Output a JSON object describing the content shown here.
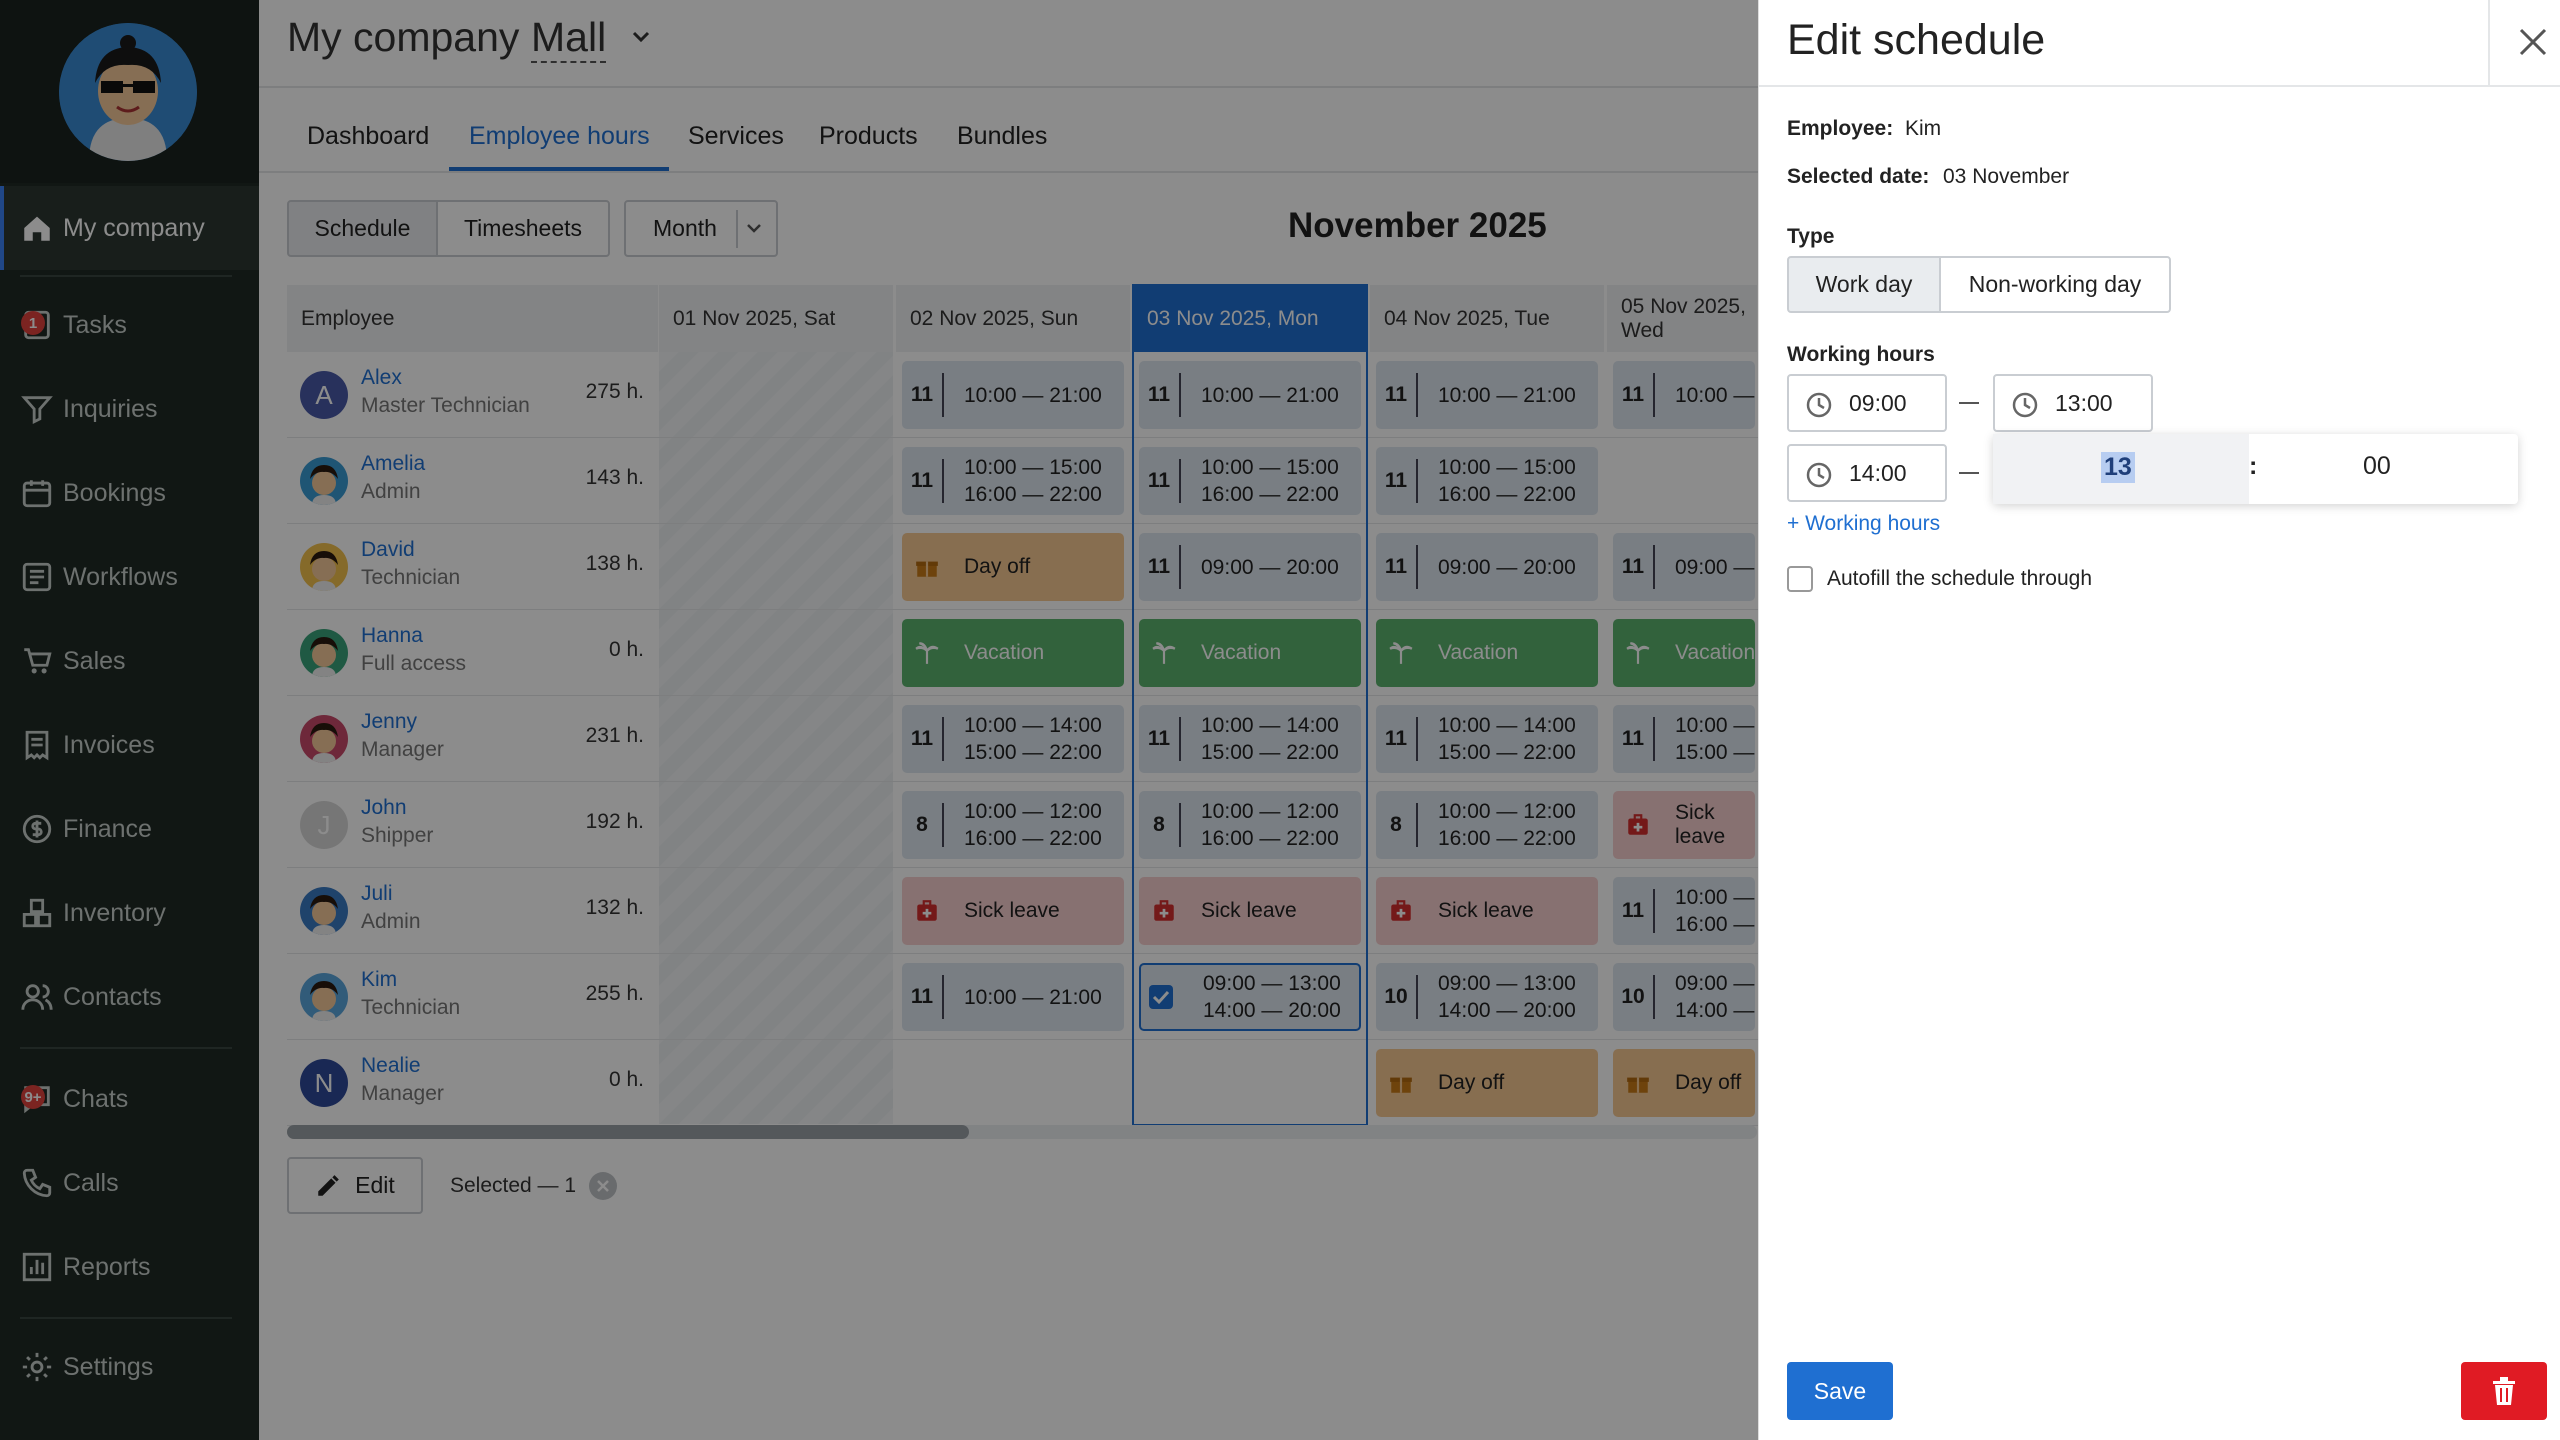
{
  "sidebar": {
    "items": [
      {
        "label": "My company",
        "icon": "home-icon"
      },
      {
        "label": "Tasks",
        "icon": "tasks-icon",
        "badge": "1"
      },
      {
        "label": "Inquiries",
        "icon": "funnel-icon"
      },
      {
        "label": "Bookings",
        "icon": "calendar-icon"
      },
      {
        "label": "Workflows",
        "icon": "workflow-icon"
      },
      {
        "label": "Sales",
        "icon": "cart-icon"
      },
      {
        "label": "Invoices",
        "icon": "invoice-icon"
      },
      {
        "label": "Finance",
        "icon": "dollar-icon"
      },
      {
        "label": "Inventory",
        "icon": "boxes-icon"
      },
      {
        "label": "Contacts",
        "icon": "contacts-icon"
      },
      {
        "label": "Chats",
        "icon": "chat-icon",
        "badge": "9+"
      },
      {
        "label": "Calls",
        "icon": "phone-icon"
      },
      {
        "label": "Reports",
        "icon": "reports-icon"
      },
      {
        "label": "Settings",
        "icon": "gear-icon"
      }
    ]
  },
  "header": {
    "company": "My company",
    "location": "Mall"
  },
  "tabs": [
    "Dashboard",
    "Employee hours",
    "Services",
    "Products",
    "Bundles"
  ],
  "toolbar": {
    "schedule": "Schedule",
    "timesheets": "Timesheets",
    "period": "Month",
    "month_title": "November 2025"
  },
  "grid": {
    "employee_header": "Employee",
    "columns": [
      "01 Nov 2025, Sat",
      "02 Nov 2025, Sun",
      "03 Nov 2025, Mon",
      "04 Nov 2025, Tue",
      "05 Nov 2025, Wed"
    ],
    "employees": [
      {
        "name": "Alex",
        "role": "Master Technician",
        "hours": "275 h.",
        "initial": "A"
      },
      {
        "name": "Amelia",
        "role": "Admin",
        "hours": "143 h."
      },
      {
        "name": "David",
        "role": "Technician",
        "hours": "138 h."
      },
      {
        "name": "Hanna",
        "role": "Full access",
        "hours": "0 h."
      },
      {
        "name": "Jenny",
        "role": "Manager",
        "hours": "231 h."
      },
      {
        "name": "John",
        "role": "Shipper",
        "hours": "192 h.",
        "initial": "J"
      },
      {
        "name": "Juli",
        "role": "Admin",
        "hours": "132 h."
      },
      {
        "name": "Kim",
        "role": "Technician",
        "hours": "255 h."
      },
      {
        "name": "Nealie",
        "role": "Manager",
        "hours": "0 h.",
        "initial": "N"
      }
    ],
    "rows": [
      [
        {
          "type": "work",
          "n": "11",
          "t": [
            "10:00 — 21:00"
          ]
        },
        {
          "type": "work",
          "n": "11",
          "t": [
            "10:00 — 21:00"
          ]
        },
        {
          "type": "work",
          "n": "11",
          "t": [
            "10:00 — 21:00"
          ]
        },
        {
          "type": "work",
          "n": "11",
          "t": [
            "10:00 —"
          ]
        }
      ],
      [
        {
          "type": "work",
          "n": "11",
          "t": [
            "10:00 — 15:00",
            "16:00 — 22:00"
          ]
        },
        {
          "type": "work",
          "n": "11",
          "t": [
            "10:00 — 15:00",
            "16:00 — 22:00"
          ]
        },
        {
          "type": "work",
          "n": "11",
          "t": [
            "10:00 — 15:00",
            "16:00 — 22:00"
          ]
        },
        null
      ],
      [
        {
          "type": "off",
          "label": "Day off"
        },
        {
          "type": "work",
          "n": "11",
          "t": [
            "09:00 — 20:00"
          ]
        },
        {
          "type": "work",
          "n": "11",
          "t": [
            "09:00 — 20:00"
          ]
        },
        {
          "type": "work",
          "n": "11",
          "t": [
            "09:00 —"
          ]
        }
      ],
      [
        {
          "type": "vac",
          "label": "Vacation"
        },
        {
          "type": "vac",
          "label": "Vacation"
        },
        {
          "type": "vac",
          "label": "Vacation"
        },
        {
          "type": "vac",
          "label": "Vacation"
        }
      ],
      [
        {
          "type": "work",
          "n": "11",
          "t": [
            "10:00 — 14:00",
            "15:00 — 22:00"
          ]
        },
        {
          "type": "work",
          "n": "11",
          "t": [
            "10:00 — 14:00",
            "15:00 — 22:00"
          ]
        },
        {
          "type": "work",
          "n": "11",
          "t": [
            "10:00 — 14:00",
            "15:00 — 22:00"
          ]
        },
        {
          "type": "work",
          "n": "11",
          "t": [
            "10:00 —",
            "15:00 —"
          ]
        }
      ],
      [
        {
          "type": "work",
          "n": "8",
          "t": [
            "10:00 — 12:00",
            "16:00 — 22:00"
          ]
        },
        {
          "type": "work",
          "n": "8",
          "t": [
            "10:00 — 12:00",
            "16:00 — 22:00"
          ]
        },
        {
          "type": "work",
          "n": "8",
          "t": [
            "10:00 — 12:00",
            "16:00 — 22:00"
          ]
        },
        {
          "type": "sick",
          "label": "Sick leave"
        }
      ],
      [
        {
          "type": "sick",
          "label": "Sick leave"
        },
        {
          "type": "sick",
          "label": "Sick leave"
        },
        {
          "type": "sick",
          "label": "Sick leave"
        },
        {
          "type": "work",
          "n": "11",
          "t": [
            "10:00 —",
            "16:00 —"
          ]
        }
      ],
      [
        {
          "type": "work",
          "n": "11",
          "t": [
            "10:00 — 21:00"
          ]
        },
        {
          "type": "work",
          "check": true,
          "t": [
            "09:00 — 13:00",
            "14:00 — 20:00"
          ]
        },
        {
          "type": "work",
          "n": "10",
          "t": [
            "09:00 — 13:00",
            "14:00 — 20:00"
          ]
        },
        {
          "type": "work",
          "n": "10",
          "t": [
            "09:00 —",
            "14:00 —"
          ]
        }
      ],
      [
        null,
        null,
        {
          "type": "off",
          "label": "Day off"
        },
        {
          "type": "off",
          "label": "Day off"
        }
      ]
    ]
  },
  "footer": {
    "edit": "Edit",
    "selected": "Selected — 1"
  },
  "panel": {
    "title": "Edit schedule",
    "employee_label": "Employee:",
    "employee_value": "Kim",
    "date_label": "Selected date:",
    "date_value": "03 November",
    "type_label": "Type",
    "work_day": "Work day",
    "non_working_day": "Non-working day",
    "working_hours_label": "Working hours",
    "range1_start": "09:00",
    "range1_end": "13:00",
    "range2_start": "14:00",
    "picker_hour": "13",
    "picker_sep": ":",
    "picker_min": "00",
    "add_hours": "+ Working hours",
    "autofill": "Autofill the schedule through",
    "save": "Save"
  },
  "colors": {
    "accent": "#1f6fd1",
    "sidebar": "#1f2a25",
    "save": "#1f6fd1",
    "delete": "#e01b24"
  }
}
